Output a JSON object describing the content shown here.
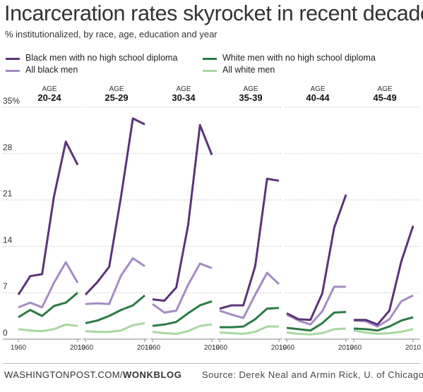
{
  "header": {
    "title": "Incarceration rates skyrocket in recent decades",
    "subtitle": "% institutionalized, by race, age, education and year"
  },
  "footer": {
    "credit_prefix": "WASHINGTONPOST.COM/",
    "credit_suffix": "WONKBLOG",
    "source": "Source: Derek Neal and Armin Rick, U. of Chicago"
  },
  "colors": {
    "black_no_hs": "#5b3479",
    "all_black": "#a58cc4",
    "white_no_hs": "#2d7a46",
    "all_white": "#a8d8a0",
    "grid": "#cccccc",
    "text": "#222222"
  },
  "chart_data": {
    "type": "line",
    "age_label": "AGE",
    "x": [
      1960,
      1970,
      1980,
      1990,
      2000,
      2010
    ],
    "x_tick_labels": [
      "1960",
      "2010"
    ],
    "ylim": [
      0,
      35
    ],
    "y_ticks": [
      0,
      7,
      14,
      21,
      28,
      35
    ],
    "y_tick_labels": [
      "0",
      "7",
      "14",
      "21",
      "28",
      "35%"
    ],
    "grid": true,
    "legend_placement": "top",
    "series_styles": [
      {
        "name": "Black men with no high school diploma",
        "color": "#5b3479",
        "width": 3
      },
      {
        "name": "All black men",
        "color": "#a58cc4",
        "width": 3
      },
      {
        "name": "White men with no high school diploma",
        "color": "#2d7a46",
        "width": 3
      },
      {
        "name": "All white men",
        "color": "#a8d8a0",
        "width": 3
      }
    ],
    "panels": [
      {
        "age": "20-24",
        "series": [
          [
            6.7,
            9.5,
            9.8,
            21.5,
            29.8,
            26.3
          ],
          [
            4.8,
            5.5,
            4.8,
            8.5,
            11.6,
            8.5
          ],
          [
            3.3,
            4.4,
            3.5,
            5.0,
            5.5,
            7.0
          ],
          [
            1.5,
            1.3,
            1.2,
            1.5,
            2.2,
            2.0
          ]
        ]
      },
      {
        "age": "25-29",
        "series": [
          [
            6.7,
            8.6,
            10.9,
            21.5,
            33.3,
            32.4
          ],
          [
            5.3,
            5.4,
            5.3,
            9.6,
            12.2,
            11.0
          ],
          [
            2.4,
            2.8,
            3.5,
            4.4,
            5.1,
            6.6
          ],
          [
            1.2,
            1.1,
            1.1,
            1.3,
            2.1,
            2.4
          ]
        ]
      },
      {
        "age": "30-34",
        "series": [
          [
            6.0,
            5.8,
            7.8,
            17.2,
            32.3,
            27.8
          ],
          [
            5.3,
            4.0,
            4.3,
            8.2,
            11.4,
            10.7
          ],
          [
            2.0,
            2.2,
            2.6,
            3.9,
            5.1,
            5.7
          ],
          [
            1.1,
            0.9,
            0.8,
            1.2,
            2.0,
            2.2
          ]
        ]
      },
      {
        "age": "35-39",
        "series": [
          [
            4.6,
            5.1,
            5.1,
            11.0,
            24.2,
            23.9
          ],
          [
            4.3,
            3.7,
            3.2,
            6.7,
            10.0,
            8.3
          ],
          [
            1.8,
            1.8,
            1.9,
            3.0,
            4.6,
            4.7
          ],
          [
            1.0,
            0.9,
            0.8,
            1.1,
            1.9,
            1.9
          ]
        ]
      },
      {
        "age": "40-44",
        "series": [
          [
            3.9,
            3.0,
            2.9,
            6.9,
            16.8,
            21.8
          ],
          [
            3.7,
            2.8,
            2.2,
            4.2,
            7.9,
            7.9
          ],
          [
            1.7,
            1.5,
            1.3,
            2.4,
            4.0,
            4.1
          ],
          [
            1.0,
            0.8,
            0.7,
            0.9,
            1.5,
            1.6
          ]
        ]
      },
      {
        "age": "45-49",
        "series": [
          [
            2.9,
            2.9,
            2.2,
            4.3,
            11.7,
            17.1
          ],
          [
            2.8,
            2.7,
            1.9,
            3.0,
            5.7,
            6.6
          ],
          [
            1.6,
            1.5,
            1.3,
            1.9,
            2.8,
            3.3
          ],
          [
            1.3,
            1.0,
            0.8,
            0.9,
            1.1,
            1.5
          ]
        ]
      }
    ]
  }
}
